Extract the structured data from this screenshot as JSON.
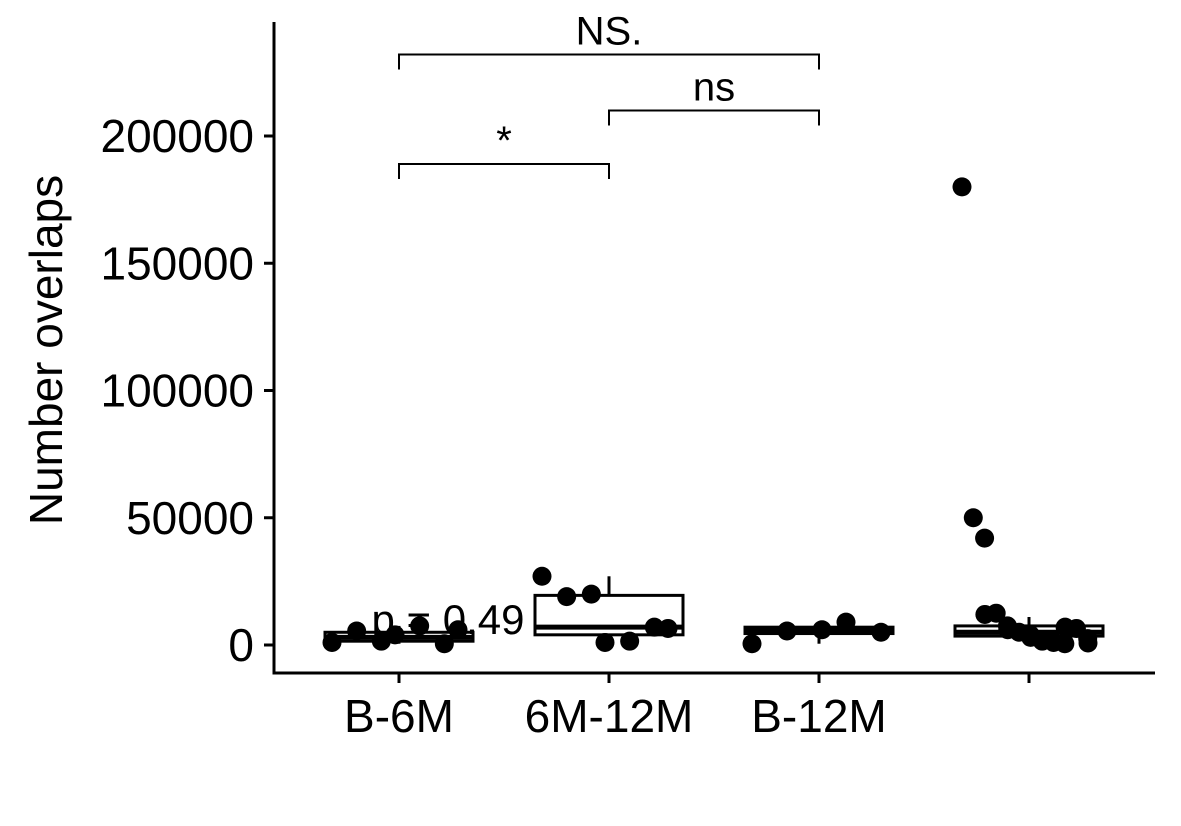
{
  "chart_data": {
    "type": "box",
    "ylabel": "Number overlaps",
    "xlabel": "",
    "categories": [
      "B-6M",
      "6M-12M",
      "B-12M",
      ""
    ],
    "ylim": [
      -11000,
      243000
    ],
    "yticks": [
      0,
      50000,
      100000,
      150000,
      200000
    ],
    "ytick_labels": [
      "0",
      "50000",
      "100000",
      "150000",
      "200000"
    ],
    "grid": false,
    "boxes": [
      {
        "category": "B-6M",
        "q1": 1500,
        "median": 3000,
        "q3": 5000,
        "whisker_low": 500,
        "whisker_high": 7500
      },
      {
        "category": "6M-12M",
        "q1": 4000,
        "median": 7000,
        "q3": 19500,
        "whisker_low": 1000,
        "whisker_high": 27000
      },
      {
        "category": "B-12M",
        "q1": 4500,
        "median": 5500,
        "q3": 7000,
        "whisker_low": 500,
        "whisker_high": 9000
      },
      {
        "category": "",
        "q1": 3500,
        "median": 5000,
        "q3": 7500,
        "whisker_low": 500,
        "whisker_high": 11000
      }
    ],
    "points": [
      {
        "category": "B-6M",
        "values": [
          1000,
          5500,
          1500,
          4000,
          7500,
          500,
          6000
        ]
      },
      {
        "category": "6M-12M",
        "values": [
          27000,
          19000,
          20000,
          1000,
          1500,
          7000,
          6500
        ]
      },
      {
        "category": "B-12M",
        "values": [
          500,
          5500,
          6000,
          9000,
          5000
        ]
      },
      {
        "category": "",
        "values": [
          180000,
          50000,
          42000,
          12000,
          12500,
          7500,
          6000,
          5000,
          4000,
          3000,
          2000,
          1500,
          1000,
          500,
          7000,
          6500,
          2500,
          800
        ]
      }
    ],
    "comparisons": [
      {
        "groups": [
          "B-6M",
          "6M-12M"
        ],
        "label": "*",
        "y": 189000
      },
      {
        "groups": [
          "6M-12M",
          "B-12M"
        ],
        "label": "ns",
        "y": 210000
      },
      {
        "groups": [
          "B-6M",
          "B-12M"
        ],
        "label": "NS.",
        "y": 232000
      }
    ],
    "pvalue_text": "p = 0.49"
  }
}
